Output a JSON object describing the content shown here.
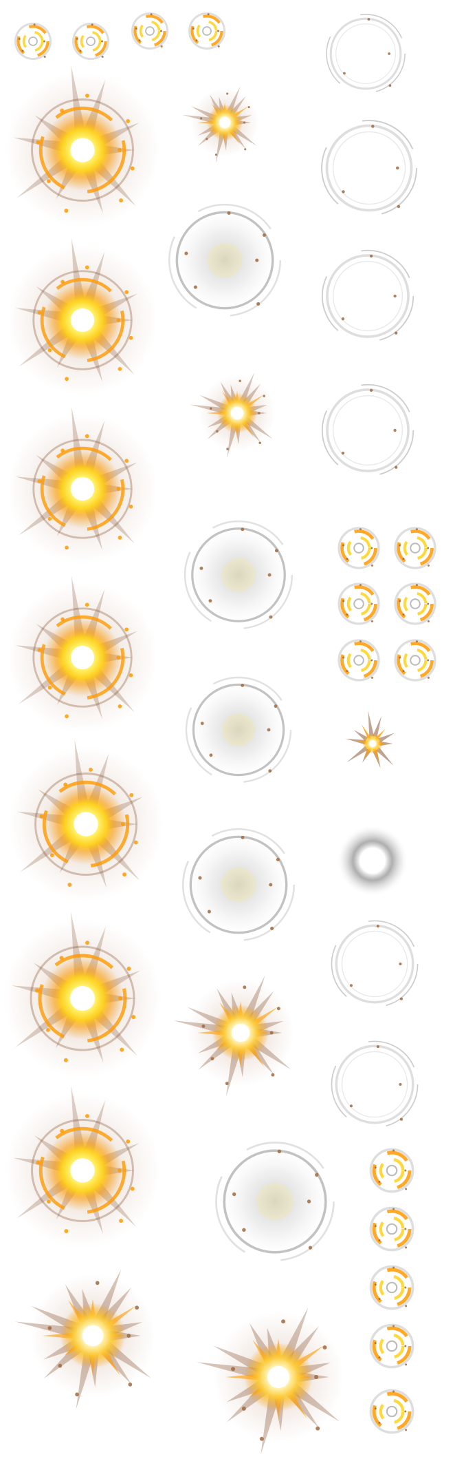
{
  "sprite_sheet": {
    "background": "#ffffff",
    "palette": {
      "core_white": "#ffffff",
      "core_yellow": "#fff066",
      "glow_yellow": "#ffd21a",
      "glow_orange": "#ff9a00",
      "ray_brown": "#8a5a3a",
      "ring_grey": "#8f8f8f",
      "ring_soft": "#c8c8c8",
      "spark_brown": "#a06a40"
    },
    "frames": [
      {
        "kind": "swirl-ring",
        "icon": "swirl-ring-icon"
      },
      {
        "kind": "swirl-ring",
        "icon": "swirl-ring-icon"
      },
      {
        "kind": "swirl-ring",
        "icon": "swirl-ring-icon"
      },
      {
        "kind": "swirl-ring",
        "icon": "swirl-ring-icon"
      },
      {
        "kind": "faint-ring",
        "icon": "faint-ring-icon"
      },
      {
        "kind": "glow-orb",
        "icon": "glow-orb-icon"
      },
      {
        "kind": "starburst",
        "icon": "starburst-icon"
      },
      {
        "kind": "faint-ring",
        "icon": "faint-ring-icon"
      },
      {
        "kind": "smoke-ring",
        "icon": "smoke-ring-icon"
      },
      {
        "kind": "faint-ring",
        "icon": "faint-ring-icon"
      },
      {
        "kind": "glow-orb",
        "icon": "glow-orb-icon"
      },
      {
        "kind": "starburst",
        "icon": "starburst-icon"
      },
      {
        "kind": "faint-ring",
        "icon": "faint-ring-icon"
      },
      {
        "kind": "glow-orb",
        "icon": "glow-orb-icon"
      },
      {
        "kind": "smoke-ring",
        "icon": "smoke-ring-icon"
      },
      {
        "kind": "swirl-ring",
        "icon": "swirl-ring-icon"
      },
      {
        "kind": "swirl-ring",
        "icon": "swirl-ring-icon"
      },
      {
        "kind": "swirl-ring",
        "icon": "swirl-ring-icon"
      },
      {
        "kind": "swirl-ring",
        "icon": "swirl-ring-icon"
      },
      {
        "kind": "swirl-ring",
        "icon": "swirl-ring-icon"
      },
      {
        "kind": "swirl-ring",
        "icon": "swirl-ring-icon"
      },
      {
        "kind": "glow-orb",
        "icon": "glow-orb-icon"
      },
      {
        "kind": "smoke-ring",
        "icon": "smoke-ring-icon"
      },
      {
        "kind": "small-starburst",
        "icon": "small-starburst-icon"
      },
      {
        "kind": "glow-orb",
        "icon": "glow-orb-icon"
      },
      {
        "kind": "smoke-ring",
        "icon": "smoke-ring-icon"
      },
      {
        "kind": "soft-halo",
        "icon": "soft-halo-icon"
      },
      {
        "kind": "glow-orb",
        "icon": "glow-orb-icon"
      },
      {
        "kind": "starburst",
        "icon": "starburst-icon"
      },
      {
        "kind": "faint-ring",
        "icon": "faint-ring-icon"
      },
      {
        "kind": "faint-ring",
        "icon": "faint-ring-icon"
      },
      {
        "kind": "glow-orb",
        "icon": "glow-orb-icon"
      },
      {
        "kind": "smoke-ring",
        "icon": "smoke-ring-icon"
      },
      {
        "kind": "swirl-ring",
        "icon": "swirl-ring-icon"
      },
      {
        "kind": "swirl-ring",
        "icon": "swirl-ring-icon"
      },
      {
        "kind": "starburst",
        "icon": "starburst-icon"
      },
      {
        "kind": "starburst",
        "icon": "starburst-icon"
      },
      {
        "kind": "swirl-ring",
        "icon": "swirl-ring-icon"
      },
      {
        "kind": "swirl-ring",
        "icon": "swirl-ring-icon"
      },
      {
        "kind": "swirl-ring",
        "icon": "swirl-ring-icon"
      }
    ]
  }
}
